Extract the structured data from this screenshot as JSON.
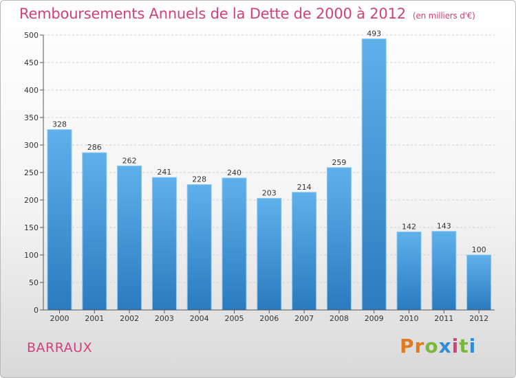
{
  "header": {
    "title": "Remboursements Annuels de la Dette de 2000 à 2012",
    "unit": "(en milliers d'€)"
  },
  "footer": {
    "commune": "BARRAUX",
    "brand": "Proxiti"
  },
  "colors": {
    "title": "#d1417a",
    "bar_top": "#5fb0ea",
    "bar_bottom": "#2a7bbf"
  },
  "chart_data": {
    "type": "bar",
    "title": "Remboursements Annuels de la Dette de 2000 à 2012",
    "subtitle": "(en milliers d'€)",
    "categories": [
      "2000",
      "2001",
      "2002",
      "2003",
      "2004",
      "2005",
      "2006",
      "2007",
      "2008",
      "2009",
      "2010",
      "2011",
      "2012"
    ],
    "values": [
      328,
      286,
      262,
      241,
      228,
      240,
      203,
      214,
      259,
      493,
      142,
      143,
      100
    ],
    "ylim": [
      0,
      500
    ],
    "yticks": [
      0,
      50,
      100,
      150,
      200,
      250,
      300,
      350,
      400,
      450,
      500
    ],
    "grid": true,
    "legend": "none"
  }
}
